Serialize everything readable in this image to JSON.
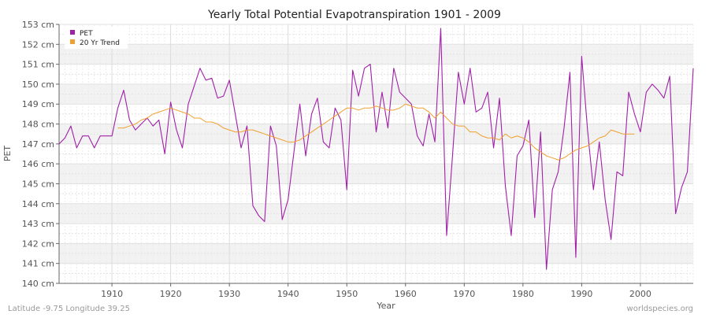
{
  "chart_data": {
    "type": "line",
    "title": "Yearly Total Potential Evapotranspiration 1901 - 2009",
    "xlabel": "Year",
    "ylabel": "PET",
    "xlim": [
      1901,
      2009
    ],
    "ylim": [
      140,
      153
    ],
    "x_ticks": [
      1910,
      1920,
      1930,
      1940,
      1950,
      1960,
      1970,
      1980,
      1990,
      2000
    ],
    "y_ticks": [
      140,
      141,
      142,
      143,
      144,
      145,
      146,
      147,
      148,
      149,
      150,
      151,
      152,
      153
    ],
    "y_tick_labels": [
      "140 cm",
      "141 cm",
      "142 cm",
      "143 cm",
      "144 cm",
      "145 cm",
      "146 cm",
      "147 cm",
      "148 cm",
      "149 cm",
      "150 cm",
      "151 cm",
      "152 cm",
      "153 cm"
    ],
    "grid": true,
    "legend": {
      "position": "top-left",
      "entries": [
        "PET",
        "20 Yr Trend"
      ]
    },
    "series": [
      {
        "name": "PET",
        "color": "#a020a8",
        "x_start": 1901,
        "values": [
          147.0,
          147.3,
          147.9,
          146.8,
          147.4,
          147.4,
          146.8,
          147.4,
          147.4,
          147.4,
          148.8,
          149.7,
          148.2,
          147.7,
          148.0,
          148.3,
          147.9,
          148.2,
          146.5,
          149.1,
          147.7,
          146.8,
          149.0,
          149.9,
          150.8,
          150.2,
          150.3,
          149.3,
          149.4,
          150.2,
          148.5,
          146.8,
          147.9,
          143.9,
          143.4,
          143.1,
          147.9,
          146.9,
          143.2,
          144.2,
          146.6,
          149.0,
          146.4,
          148.5,
          149.3,
          147.1,
          146.8,
          148.8,
          148.2,
          144.7,
          150.7,
          149.4,
          150.8,
          151.0,
          147.6,
          149.6,
          147.8,
          150.8,
          149.6,
          149.3,
          149.0,
          147.4,
          146.9,
          148.5,
          147.1,
          152.8,
          142.4,
          146.4,
          150.6,
          149.0,
          150.8,
          148.6,
          148.8,
          149.6,
          146.8,
          149.3,
          144.9,
          142.4,
          146.4,
          146.9,
          148.2,
          143.3,
          147.6,
          140.7,
          144.7,
          145.6,
          147.8,
          150.6,
          141.3,
          151.4,
          147.7,
          144.7,
          147.1,
          144.2,
          142.2,
          145.6,
          145.4,
          149.6,
          148.5,
          147.6,
          149.6,
          150.0,
          149.7,
          149.3,
          150.4,
          143.5,
          144.8,
          145.6,
          150.8
        ]
      },
      {
        "name": "20 Yr Trend",
        "color": "#f0a030",
        "x_start": 1911,
        "values": [
          147.8,
          147.8,
          147.9,
          148.0,
          148.2,
          148.3,
          148.5,
          148.6,
          148.7,
          148.8,
          148.7,
          148.6,
          148.5,
          148.3,
          148.3,
          148.1,
          148.1,
          148.0,
          147.8,
          147.7,
          147.6,
          147.6,
          147.7,
          147.7,
          147.6,
          147.5,
          147.4,
          147.3,
          147.2,
          147.1,
          147.1,
          147.2,
          147.4,
          147.6,
          147.8,
          148.0,
          148.2,
          148.4,
          148.6,
          148.8,
          148.8,
          148.7,
          148.8,
          148.8,
          148.9,
          148.8,
          148.7,
          148.7,
          148.8,
          149.0,
          148.9,
          148.8,
          148.8,
          148.6,
          148.3,
          148.6,
          148.3,
          148.0,
          147.9,
          147.9,
          147.6,
          147.6,
          147.4,
          147.3,
          147.3,
          147.2,
          147.5,
          147.3,
          147.4,
          147.3,
          147.1,
          146.8,
          146.6,
          146.4,
          146.3,
          146.2,
          146.3,
          146.5,
          146.7,
          146.8,
          146.9,
          147.1,
          147.3,
          147.4,
          147.7,
          147.6,
          147.5,
          147.5,
          147.5
        ]
      }
    ],
    "annotations": {
      "bottom_left": "Latitude -9.75 Longitude 39.25",
      "bottom_right": "worldspecies.org"
    }
  }
}
